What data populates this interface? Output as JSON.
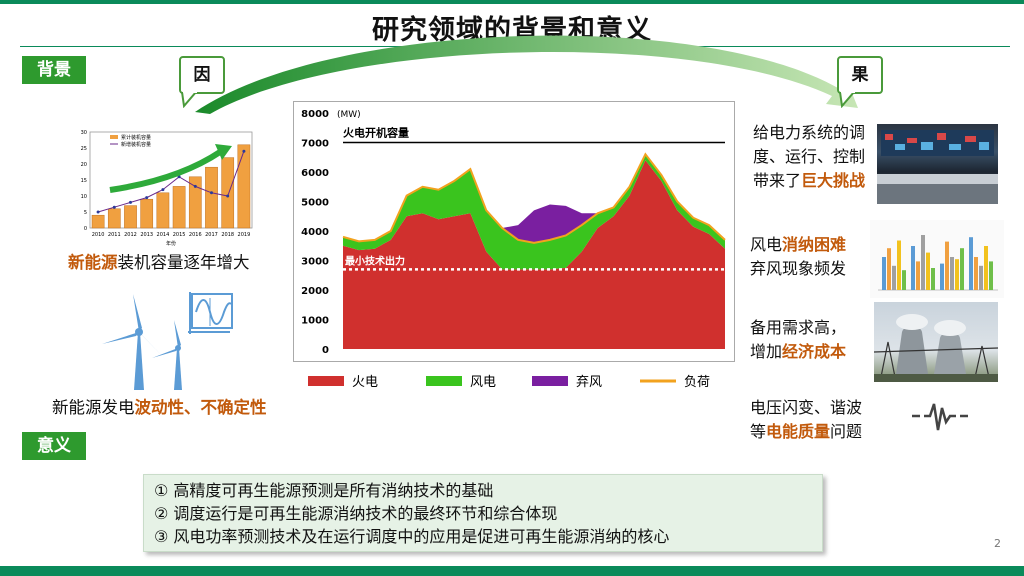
{
  "page": {
    "title": "研究领域的背景和意义",
    "page_number": "2",
    "accent_color": "#2e9a2e",
    "highlight_color": "#c25a0c"
  },
  "tags": {
    "background": "背景",
    "meaning": "意义"
  },
  "bubbles": {
    "cause": "因",
    "effect": "果"
  },
  "left": {
    "growth_caption_pre": "新能源",
    "growth_caption_post": "装机容量逐年增大",
    "fluct_caption_pre": "新能源发电",
    "fluct_caption_hl": "波动性、不确定性",
    "mini_chart": {
      "type": "bar",
      "years": [
        "2010",
        "2011",
        "2012",
        "2013",
        "2014",
        "2015",
        "2016",
        "2017",
        "2018",
        "2019"
      ],
      "values": [
        4,
        6,
        7,
        9,
        11,
        13,
        16,
        19,
        22,
        26
      ],
      "ratio_values": [
        1.0,
        1.3,
        1.6,
        1.9,
        2.4,
        3.2,
        2.6,
        2.2,
        2.0,
        4.8
      ],
      "legend": [
        "累计装机容量",
        "新增装机容量"
      ],
      "x_label": "年份",
      "y_ticks": [
        "0",
        "5",
        "10",
        "15",
        "20",
        "25",
        "30"
      ]
    }
  },
  "chart_data": {
    "type": "area",
    "unit_label": "(MW)",
    "y_ticks": [
      "8000",
      "7000",
      "6000",
      "5000",
      "4000",
      "3000",
      "2000",
      "1000",
      "0"
    ],
    "ylim": [
      0,
      8000
    ],
    "thermal_capacity_label": "火电开机容量",
    "thermal_capacity": 7000,
    "min_output_label": "最小技术出力",
    "min_output": 2700,
    "x": [
      0,
      1,
      2,
      3,
      4,
      5,
      6,
      7,
      8,
      9,
      10,
      11,
      12,
      13,
      14,
      15,
      16,
      17,
      18,
      19,
      20,
      21,
      22,
      23,
      24
    ],
    "series": [
      {
        "name": "火电",
        "color": "#d0302e",
        "values": [
          3500,
          3350,
          3400,
          3700,
          4500,
          4600,
          4400,
          4500,
          4600,
          3300,
          2700,
          2700,
          2700,
          2700,
          2750,
          3300,
          4100,
          4500,
          5200,
          6400,
          5700,
          4700,
          4150,
          3900,
          3400
        ]
      },
      {
        "name": "风电",
        "color": "#3ac41e",
        "values": [
          300,
          300,
          300,
          300,
          700,
          900,
          1000,
          1200,
          1500,
          1400,
          1400,
          1000,
          900,
          1000,
          1100,
          900,
          500,
          300,
          300,
          200,
          200,
          300,
          300,
          300,
          300
        ]
      },
      {
        "name": "弃风",
        "color": "#7a1fa0",
        "values": [
          0,
          0,
          0,
          0,
          0,
          0,
          0,
          0,
          0,
          0,
          0,
          500,
          1100,
          1200,
          1000,
          400,
          0,
          0,
          0,
          0,
          0,
          0,
          0,
          0,
          0
        ]
      },
      {
        "name": "负荷",
        "color": "#f2a21e",
        "values": [
          3800,
          3650,
          3700,
          4000,
          5200,
          5500,
          5400,
          5700,
          6100,
          4700,
          4100,
          3700,
          3600,
          3700,
          3850,
          4200,
          4600,
          4800,
          5500,
          6600,
          5900,
          5000,
          4450,
          4200,
          3700
        ]
      }
    ]
  },
  "right": {
    "item1_pre": "给电力系统的调度、运行、控制带来了",
    "item1_hl": "巨大挑战",
    "item2_l1_pre": "风电",
    "item2_l1_hl": "消纳困难",
    "item2_l2": "弃风现象频发",
    "item3_l1": "备用需求高，",
    "item3_l2_pre": "增加",
    "item3_l2_hl": "经济成本",
    "item4_l1": "电压闪变、谐波",
    "item4_l2_pre": "等",
    "item4_l2_hl": "电能质量",
    "item4_l2_post": "问题"
  },
  "meaning": [
    "① 高精度可再生能源预测是所有消纳技术的基础",
    "② 调度运行是可再生能源消纳技术的最终环节和综合体现",
    "③ 风电功率预测技术及在运行调度中的应用是促进可再生能源消纳的核心"
  ]
}
